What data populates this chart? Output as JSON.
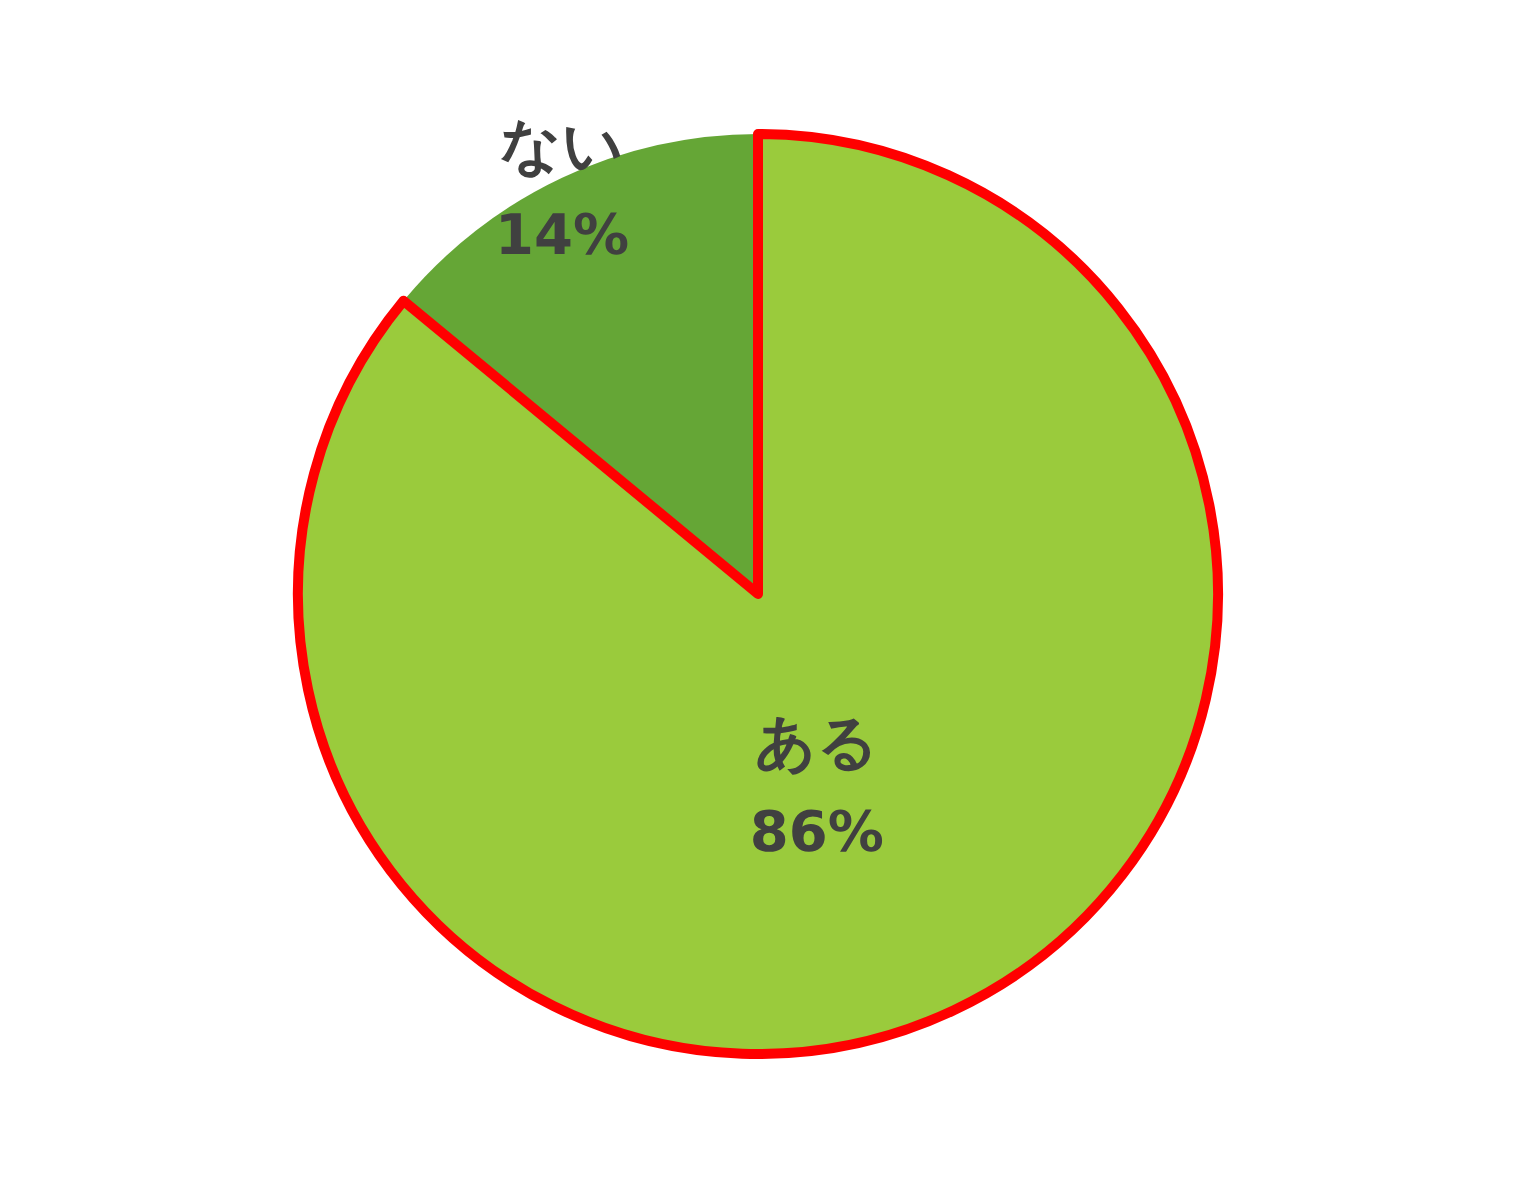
{
  "chart_data": {
    "type": "pie",
    "categories": [
      "ある",
      "ない"
    ],
    "values": [
      86,
      14
    ],
    "colors": [
      "#9acb3c",
      "#65a636"
    ],
    "value_labels": [
      "86%",
      "14%"
    ]
  }
}
